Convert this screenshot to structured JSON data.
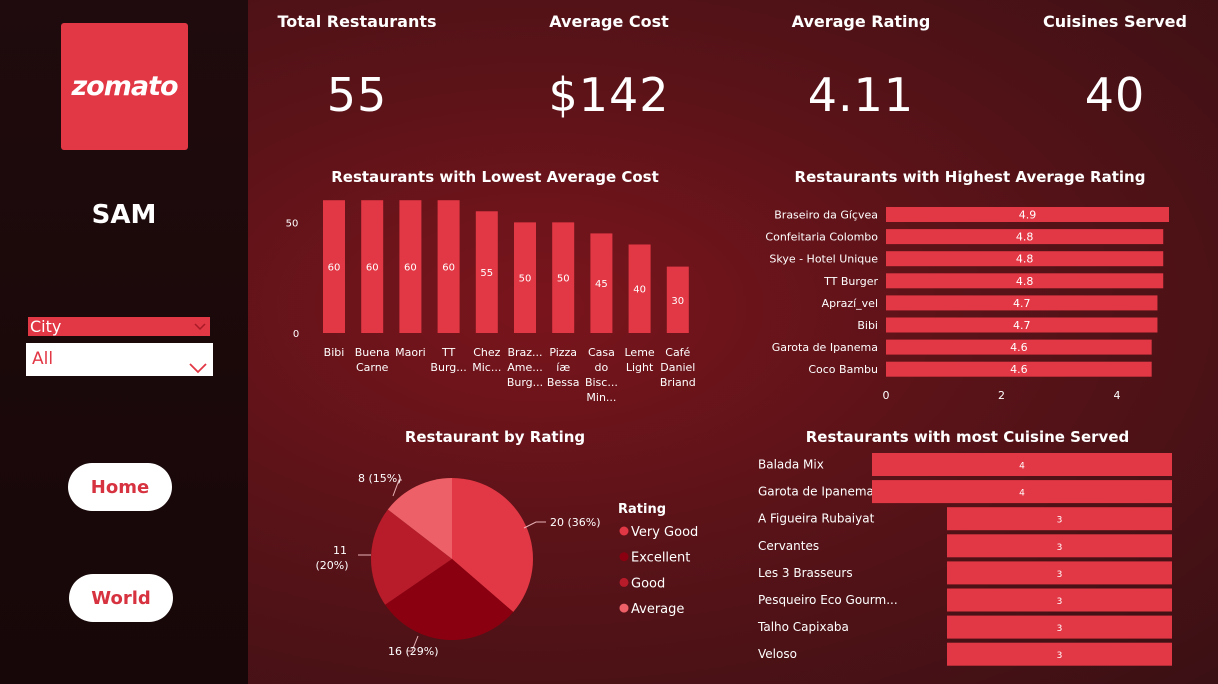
{
  "sidebar": {
    "logo_text": "zomato",
    "user_name": "SAM",
    "filter_label": "City",
    "filter_value": "All",
    "home_label": "Home",
    "world_label": "World"
  },
  "kpis": {
    "total_restaurants": {
      "label": "Total Restaurants",
      "value": "55"
    },
    "average_cost": {
      "label": "Average Cost",
      "value": "$142"
    },
    "average_rating": {
      "label": "Average Rating",
      "value": "4.11"
    },
    "cuisines_served": {
      "label": "Cuisines Served",
      "value": "40"
    }
  },
  "colors": {
    "accent": "#e23744",
    "bar": "#e23744",
    "sidebar_bg": "#1c090b",
    "main_bg": "#6a1219",
    "pie_very_good": "#e23744",
    "pie_excellent": "#8b0010",
    "pie_good": "#b81b29",
    "pie_average": "#ee6068"
  },
  "chart_data": [
    {
      "type": "bar",
      "title": "Restaurants with Lowest Average Cost",
      "categories": [
        [
          "Bibi"
        ],
        [
          "Buena",
          "Carne"
        ],
        [
          "Maori"
        ],
        [
          "TT",
          "Burg..."
        ],
        [
          "Chez",
          "Mic..."
        ],
        [
          "Braz...",
          "Ame...",
          "Burg..."
        ],
        [
          "Pizza",
          "íæ",
          "Bessa"
        ],
        [
          "Casa",
          "do",
          "Bisc...",
          "Min..."
        ],
        [
          "Leme",
          "Light"
        ],
        [
          "Café",
          "Daniel",
          "Briand"
        ]
      ],
      "values": [
        60,
        60,
        60,
        60,
        55,
        50,
        50,
        45,
        40,
        30
      ],
      "y_ticks": [
        "50",
        "0"
      ],
      "ylim": [
        0,
        61
      ]
    },
    {
      "type": "bar",
      "orientation": "horizontal",
      "title": "Restaurants with Highest Average Rating",
      "categories": [
        "Braseiro da Gíçvea",
        "Confeitaria Colombo",
        "Skye - Hotel Unique",
        "TT Burger",
        "Aprazí_vel",
        "Bibi",
        "Garota de Ipanema",
        "Coco Bambu"
      ],
      "values": [
        4.9,
        4.8,
        4.8,
        4.8,
        4.7,
        4.7,
        4.6,
        4.6
      ],
      "x_ticks": [
        "0",
        "2",
        "4"
      ],
      "xlim": [
        0,
        4.9
      ]
    },
    {
      "type": "pie",
      "title": "Restaurant by Rating",
      "legend_title": "Rating",
      "slices": [
        {
          "name": "Very Good",
          "value": 20,
          "label": "20 (36%)"
        },
        {
          "name": "Excellent",
          "value": 16,
          "label": "16 (29%)"
        },
        {
          "name": "Good",
          "value": 11,
          "label_line1": "11",
          "label_line2": "(20%)"
        },
        {
          "name": "Average",
          "value": 8,
          "label": "8 (15%)"
        }
      ]
    },
    {
      "type": "bar",
      "orientation": "horizontal",
      "title": "Restaurants with most Cuisine Served",
      "categories": [
        "Balada Mix",
        "Garota de Ipanema",
        "A Figueira Rubaiyat",
        "Cervantes",
        "Les 3 Brasseurs",
        "Pesqueiro Eco Gourm...",
        "Talho Capixaba",
        "Veloso"
      ],
      "values": [
        4,
        4,
        3,
        3,
        3,
        3,
        3,
        3
      ]
    }
  ]
}
